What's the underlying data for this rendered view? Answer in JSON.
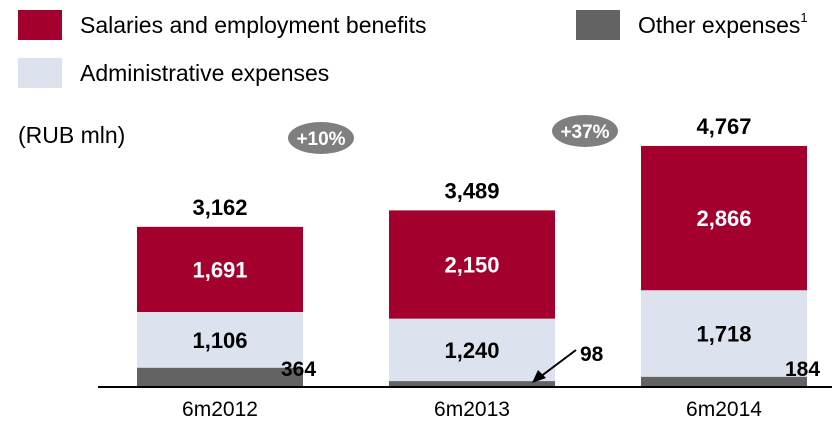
{
  "chart_data": {
    "type": "bar",
    "stacked": true,
    "unit": "(RUB mln)",
    "categories": [
      "6m2012",
      "6m2013",
      "6m2014"
    ],
    "series": [
      {
        "name": "Other expenses",
        "footnote": "1",
        "color": "#636363",
        "values": [
          364,
          98,
          184
        ]
      },
      {
        "name": "Administrative expenses",
        "color": "#dde3ee",
        "values": [
          1106,
          1240,
          1718
        ]
      },
      {
        "name": "Salaries and employment benefits",
        "color": "#a3002e",
        "values": [
          1691,
          2150,
          2866
        ]
      }
    ],
    "totals": [
      3162,
      3489,
      4767
    ],
    "data_labels": {
      "totals": [
        "3,162",
        "3,489",
        "4,767"
      ],
      "Salaries and employment benefits": [
        "1,691",
        "2,150",
        "2,866"
      ],
      "Administrative expenses": [
        "1,106",
        "1,240",
        "1,718"
      ],
      "Other expenses": [
        "364",
        "98",
        "184"
      ]
    },
    "growth_badges": [
      "+10%",
      "+37%"
    ],
    "badge_color": "#7f7f7f",
    "legend_position": "top",
    "grid": false,
    "ylim": [
      0,
      4767
    ]
  }
}
